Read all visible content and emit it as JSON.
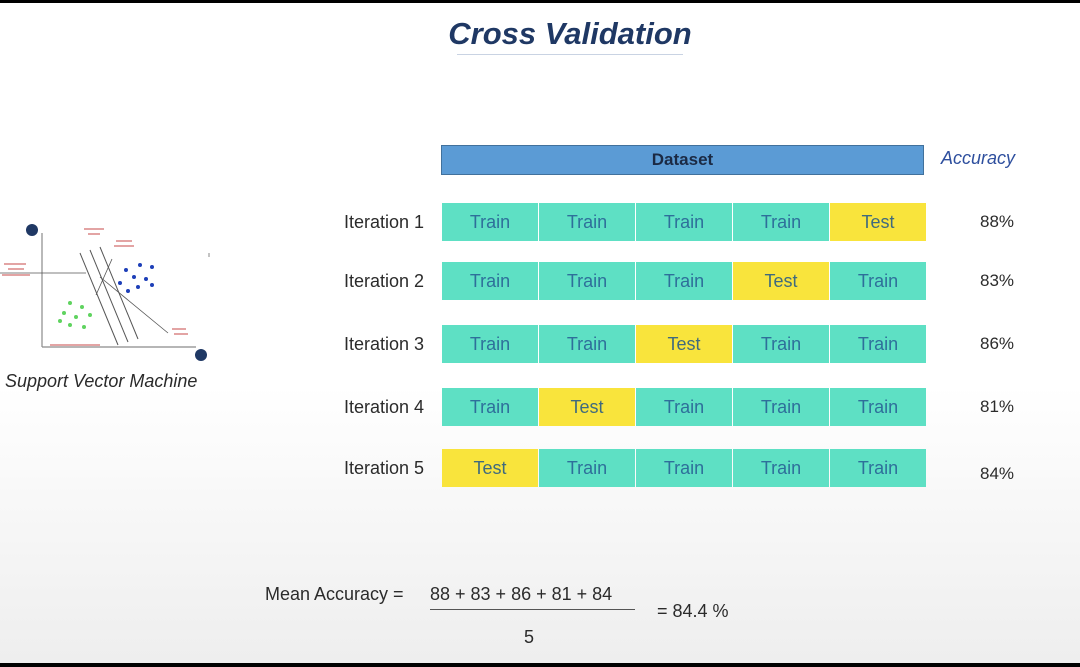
{
  "title": "Cross Validation",
  "dataset_label": "Dataset",
  "accuracy_label": "Accuracy",
  "iterations": [
    {
      "label": "Iteration 1",
      "folds": [
        "Train",
        "Train",
        "Train",
        "Train",
        "Test"
      ],
      "accuracy": "88%"
    },
    {
      "label": "Iteration 2",
      "folds": [
        "Train",
        "Train",
        "Train",
        "Test",
        "Train"
      ],
      "accuracy": "83%"
    },
    {
      "label": "Iteration 3",
      "folds": [
        "Train",
        "Train",
        "Test",
        "Train",
        "Train"
      ],
      "accuracy": "86%"
    },
    {
      "label": "Iteration 4",
      "folds": [
        "Train",
        "Test",
        "Train",
        "Train",
        "Train"
      ],
      "accuracy": "81%"
    },
    {
      "label": "Iteration 5",
      "folds": [
        "Test",
        "Train",
        "Train",
        "Train",
        "Train"
      ],
      "accuracy": "84%"
    }
  ],
  "svm_caption": "Support Vector Machine",
  "formula": {
    "label": "Mean Accuracy =",
    "numerator": "88 + 83 + 86 + 81 + 84",
    "denominator": "5",
    "result": "= 84.4 %"
  },
  "colors": {
    "train": "#5ee0c4",
    "test": "#f9e43c",
    "dataset_bar": "#5b9bd5",
    "title": "#1f3864"
  }
}
